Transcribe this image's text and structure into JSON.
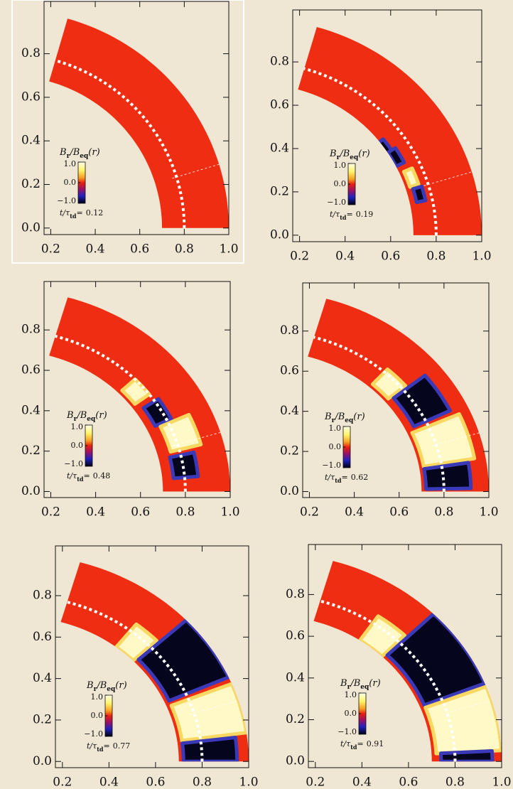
{
  "chart_data": [
    {
      "type": "wedge",
      "xlim": [
        0.17,
        1.0
      ],
      "ylim": [
        -0.03,
        1.04
      ],
      "xticks": [
        0.2,
        0.4,
        0.6,
        0.8,
        {
          "value": 1.0,
          "label": "1.0"
        }
      ],
      "yticks": [
        {
          "value": 0.0,
          "label": "0.0"
        },
        0.2,
        0.4,
        0.6,
        0.8
      ],
      "colorbar_label": [
        "B",
        "r",
        "/B",
        "eq",
        "(r)"
      ],
      "colorbar_ticks": [
        {
          "value": 1.0,
          "label": "1.0"
        },
        {
          "value": 0.0,
          "label": "0.0"
        },
        {
          "value": -1.0,
          "label": "−1.0"
        }
      ],
      "colorbar_lim": [
        -1.0,
        1.0
      ],
      "time_label": [
        "t/τ",
        "td",
        "="
      ],
      "time": 0.12
    },
    {
      "type": "wedge",
      "xlim": [
        0.17,
        1.0
      ],
      "ylim": [
        -0.03,
        1.04
      ],
      "xticks": [
        0.2,
        0.4,
        0.6,
        0.8,
        {
          "value": 1.0,
          "label": "1.0"
        }
      ],
      "yticks": [
        {
          "value": 0.0,
          "label": "0.0"
        },
        0.2,
        0.4,
        0.6,
        0.8
      ],
      "colorbar_label": [
        "B",
        "r",
        "/B",
        "eq",
        "(r)"
      ],
      "colorbar_ticks": [
        {
          "value": 1.0,
          "label": "1.0"
        },
        {
          "value": 0.0,
          "label": "0.0"
        },
        {
          "value": -1.0,
          "label": "−1.0"
        }
      ],
      "colorbar_lim": [
        -1.0,
        1.0
      ],
      "time_label": [
        "t/τ",
        "td",
        "="
      ],
      "time": 0.19
    },
    {
      "type": "wedge",
      "xlim": [
        0.17,
        1.0
      ],
      "ylim": [
        -0.03,
        1.04
      ],
      "xticks": [
        0.2,
        0.4,
        0.6,
        0.8,
        {
          "value": 1.0,
          "label": "1.0"
        }
      ],
      "yticks": [
        {
          "value": 0.0,
          "label": "0.0"
        },
        0.2,
        0.4,
        0.6,
        0.8
      ],
      "colorbar_label": [
        "B",
        "r",
        "/B",
        "eq",
        "(r)"
      ],
      "colorbar_ticks": [
        {
          "value": 1.0,
          "label": "1.0"
        },
        {
          "value": 0.0,
          "label": "0.0"
        },
        {
          "value": -1.0,
          "label": "−1.0"
        }
      ],
      "colorbar_lim": [
        -1.0,
        1.0
      ],
      "time_label": [
        "t/τ",
        "td",
        "="
      ],
      "time": 0.48
    },
    {
      "type": "wedge",
      "xlim": [
        0.17,
        1.0
      ],
      "ylim": [
        -0.03,
        1.04
      ],
      "xticks": [
        0.2,
        0.4,
        0.6,
        0.8,
        {
          "value": 1.0,
          "label": "1.0"
        }
      ],
      "yticks": [
        {
          "value": 0.0,
          "label": "0.0"
        },
        0.2,
        0.4,
        0.6,
        0.8
      ],
      "colorbar_label": [
        "B",
        "r",
        "/B",
        "eq",
        "(r)"
      ],
      "colorbar_ticks": [
        {
          "value": 1.0,
          "label": "1.0"
        },
        {
          "value": 0.0,
          "label": "0.0"
        },
        {
          "value": -1.0,
          "label": "−1.0"
        }
      ],
      "colorbar_lim": [
        -1.0,
        1.0
      ],
      "time_label": [
        "t/τ",
        "td",
        "="
      ],
      "time": 0.62
    },
    {
      "type": "wedge",
      "xlim": [
        0.17,
        1.0
      ],
      "ylim": [
        -0.03,
        1.04
      ],
      "xticks": [
        0.2,
        0.4,
        0.6,
        0.8,
        {
          "value": 1.0,
          "label": "1.0"
        }
      ],
      "yticks": [
        {
          "value": 0.0,
          "label": "0.0"
        },
        0.2,
        0.4,
        0.6,
        0.8
      ],
      "colorbar_label": [
        "B",
        "r",
        "/B",
        "eq",
        "(r)"
      ],
      "colorbar_ticks": [
        {
          "value": 1.0,
          "label": "1.0"
        },
        {
          "value": 0.0,
          "label": "0.0"
        },
        {
          "value": -1.0,
          "label": "−1.0"
        }
      ],
      "colorbar_lim": [
        -1.0,
        1.0
      ],
      "time_label": [
        "t/τ",
        "td",
        "="
      ],
      "time": 0.77
    },
    {
      "type": "wedge",
      "xlim": [
        0.17,
        1.0
      ],
      "ylim": [
        -0.03,
        1.04
      ],
      "xticks": [
        0.2,
        0.4,
        0.6,
        0.8,
        {
          "value": 1.0,
          "label": "1.0"
        }
      ],
      "yticks": [
        {
          "value": 0.0,
          "label": "0.0"
        },
        0.2,
        0.4,
        0.6,
        0.8
      ],
      "colorbar_label": [
        "B",
        "r",
        "/B",
        "eq",
        "(r)"
      ],
      "colorbar_ticks": [
        {
          "value": 1.0,
          "label": "1.0"
        },
        {
          "value": 0.0,
          "label": "0.0"
        },
        {
          "value": -1.0,
          "label": "−1.0"
        }
      ],
      "colorbar_lim": [
        -1.0,
        1.0
      ],
      "time_label": [
        "t/τ",
        "td",
        "="
      ],
      "time": 0.91
    }
  ]
}
